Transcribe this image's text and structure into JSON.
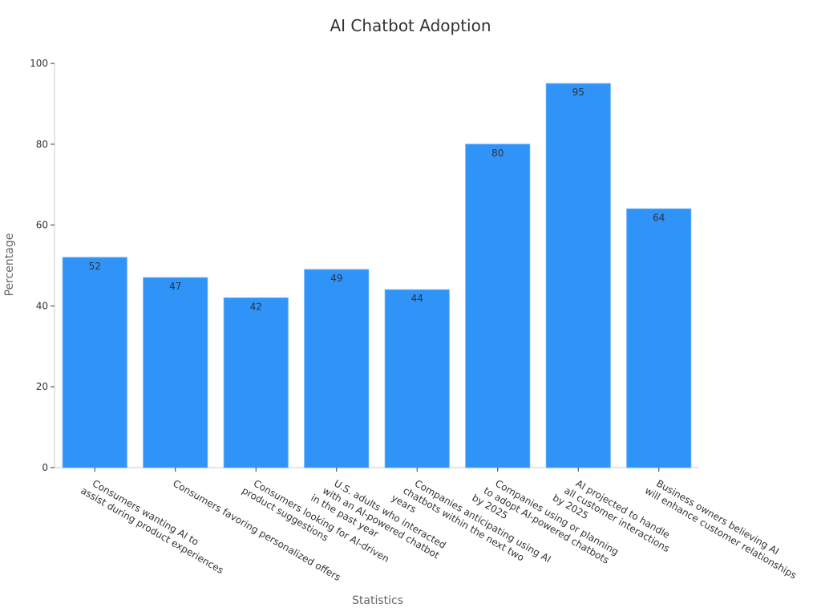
{
  "chart_data": {
    "type": "bar",
    "title": "AI Chatbot Adoption",
    "xlabel": "Statistics",
    "ylabel": "Percentage",
    "ylim": [
      0,
      100
    ],
    "yticks": [
      0,
      20,
      40,
      60,
      80,
      100
    ],
    "grid": false,
    "legend": "none",
    "bar_color": "#2f93f7",
    "categories": [
      [
        "Consumers wanting AI to",
        "assist during product experiences"
      ],
      [
        "Consumers favoring personalized offers"
      ],
      [
        "Consumers looking for AI-driven",
        "product suggestions"
      ],
      [
        "U.S. adults who interacted",
        "with an AI-powered chatbot",
        "in the past year"
      ],
      [
        "Companies anticipating using AI",
        "chatbots within the next two",
        "years"
      ],
      [
        "Companies using or planning",
        "to adopt AI-powered chatbots",
        "by 2025"
      ],
      [
        "AI projected to handle",
        "all customer interactions",
        "by 2025"
      ],
      [
        "Business owners believing AI",
        "will enhance customer relationships"
      ]
    ],
    "values": [
      52,
      47,
      42,
      49,
      44,
      80,
      95,
      64
    ]
  }
}
